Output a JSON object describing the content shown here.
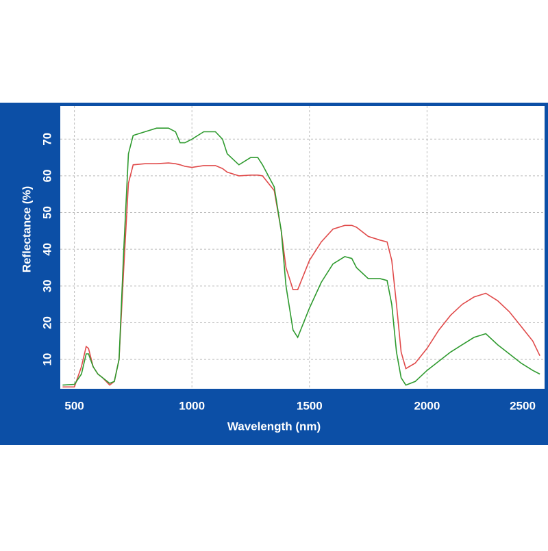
{
  "chart_data": {
    "type": "line",
    "x_label": "Wavelength (nm)",
    "y_label": "Reflectance (%)",
    "x": [
      450,
      500,
      530,
      550,
      560,
      580,
      600,
      620,
      650,
      670,
      690,
      710,
      730,
      750,
      800,
      850,
      900,
      930,
      950,
      970,
      1000,
      1050,
      1100,
      1130,
      1150,
      1200,
      1250,
      1280,
      1300,
      1350,
      1380,
      1400,
      1430,
      1450,
      1500,
      1550,
      1600,
      1650,
      1680,
      1700,
      1750,
      1800,
      1830,
      1850,
      1870,
      1890,
      1910,
      1950,
      2000,
      2050,
      2100,
      2150,
      2200,
      2250,
      2300,
      2350,
      2400,
      2450,
      2480
    ],
    "series": [
      {
        "color": "#e04a4a",
        "values": [
          2.5,
          2.5,
          8,
          13.5,
          13,
          8,
          6,
          5,
          3,
          4,
          10,
          35,
          58,
          63,
          63.3,
          63.3,
          63.5,
          63.3,
          63,
          62.6,
          62.3,
          62.8,
          62.8,
          62,
          61,
          60,
          60.2,
          60.2,
          60,
          56,
          45,
          35,
          29,
          29,
          37,
          42,
          45.5,
          46.5,
          46.5,
          46,
          43.5,
          42.5,
          42,
          37,
          25,
          12,
          7.5,
          9,
          13,
          18,
          22,
          25,
          27,
          28,
          26,
          23,
          19,
          15,
          11
        ]
      },
      {
        "color": "#2e9a2e",
        "values": [
          3,
          3.2,
          6,
          11.5,
          11.5,
          8,
          6,
          5,
          3.5,
          4,
          10,
          40,
          66,
          71,
          72,
          73,
          73,
          72,
          69,
          69,
          70,
          72,
          72,
          70,
          66,
          63,
          65,
          65,
          63,
          57,
          45,
          30,
          18,
          16,
          24,
          31,
          36,
          38,
          37.5,
          35,
          32,
          32,
          31.5,
          25,
          12,
          5,
          3,
          4,
          7,
          9.5,
          12,
          14,
          16,
          17,
          14,
          11.5,
          9,
          7,
          6
        ]
      }
    ],
    "xlim": [
      440,
      2500
    ],
    "ylim": [
      2,
      79
    ],
    "xticks": [
      500,
      1000,
      1500,
      2000,
      2500
    ],
    "yticks": [
      10,
      20,
      30,
      40,
      50,
      60,
      70
    ],
    "grid": true
  }
}
